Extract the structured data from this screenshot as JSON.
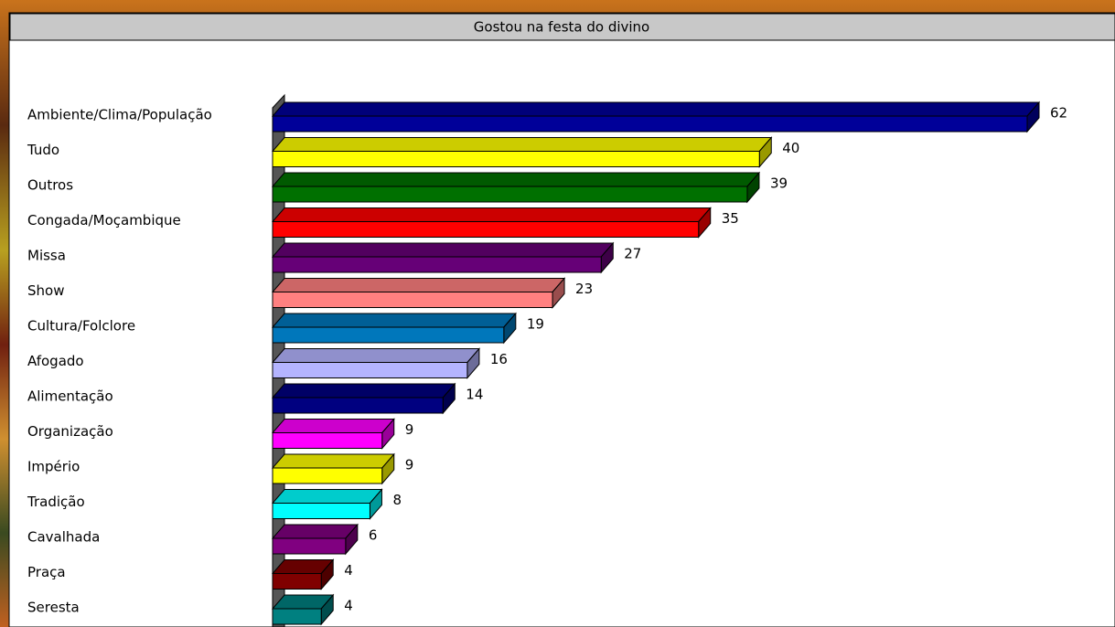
{
  "chart_data": {
    "type": "bar3d",
    "title": "Gostou na festa do divino",
    "categories": [
      "Ambiente/Clima/População",
      "Tudo",
      "Outros",
      "Congada/Moçambique",
      "Missa",
      "Show",
      "Cultura/Folclore",
      "Afogado",
      "Alimentação",
      "Organização",
      "Império",
      "Tradição",
      "Cavalhada",
      "Praça",
      "Seresta"
    ],
    "values": [
      62,
      40,
      39,
      35,
      27,
      23,
      19,
      16,
      14,
      9,
      9,
      8,
      6,
      4,
      4
    ],
    "colors": [
      "#000099",
      "#ffff00",
      "#007000",
      "#ff0000",
      "#660077",
      "#ff8080",
      "#0077bb",
      "#b4b4ff",
      "#000080",
      "#ff00ff",
      "#ffff00",
      "#00ffff",
      "#800080",
      "#800000",
      "#008080"
    ]
  }
}
